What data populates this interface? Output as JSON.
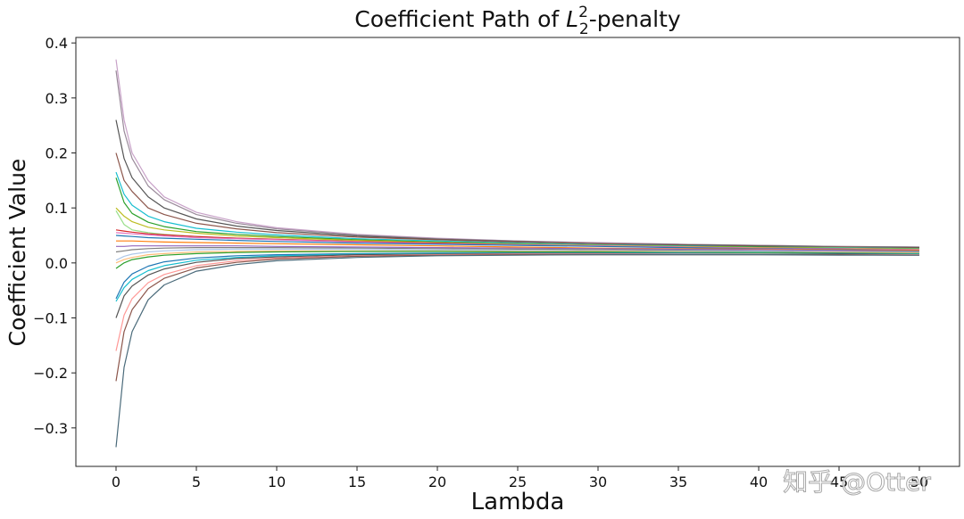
{
  "chart_data": {
    "type": "line",
    "title_prefix": "Coefficient Path of ",
    "title_math_base": "L",
    "title_math_sup": "2",
    "title_math_sub": "2",
    "title_suffix": "-penalty",
    "xlabel": "Lambda",
    "ylabel": "Coefficient Value",
    "xlim": [
      -2.5,
      52.5
    ],
    "ylim": [
      -0.37,
      0.41
    ],
    "xticks": [
      0,
      5,
      10,
      15,
      20,
      25,
      30,
      35,
      40,
      45,
      50
    ],
    "yticks": [
      -0.3,
      -0.2,
      -0.1,
      0.0,
      0.1,
      0.2,
      0.3,
      0.4
    ],
    "ytick_labels": [
      "−0.3",
      "−0.2",
      "−0.1",
      "0.0",
      "0.1",
      "0.2",
      "0.3",
      "0.4"
    ],
    "x": [
      0,
      0.5,
      1,
      2,
      3,
      5,
      7.5,
      10,
      15,
      20,
      25,
      30,
      35,
      40,
      45,
      50
    ],
    "grid": false,
    "series": [
      {
        "values": [
          0.37,
          0.26,
          0.2,
          0.15,
          0.12,
          0.092,
          0.075,
          0.064,
          0.052,
          0.045,
          0.04,
          0.037,
          0.034,
          0.032,
          0.03,
          0.029
        ],
        "color": "#c8a2c8"
      },
      {
        "values": [
          0.35,
          0.24,
          0.19,
          0.14,
          0.115,
          0.088,
          0.072,
          0.062,
          0.051,
          0.044,
          0.04,
          0.036,
          0.034,
          0.032,
          0.03,
          0.029
        ],
        "color": "#9a8a9a"
      },
      {
        "values": [
          0.26,
          0.19,
          0.155,
          0.12,
          0.1,
          0.08,
          0.067,
          0.059,
          0.049,
          0.043,
          0.039,
          0.035,
          0.033,
          0.031,
          0.029,
          0.028
        ],
        "color": "#555555"
      },
      {
        "values": [
          0.2,
          0.15,
          0.13,
          0.1,
          0.088,
          0.072,
          0.062,
          0.055,
          0.047,
          0.042,
          0.038,
          0.035,
          0.032,
          0.03,
          0.029,
          0.027
        ],
        "color": "#8c564b"
      },
      {
        "values": [
          0.165,
          0.125,
          0.105,
          0.085,
          0.075,
          0.063,
          0.056,
          0.051,
          0.044,
          0.04,
          0.036,
          0.033,
          0.031,
          0.029,
          0.028,
          0.026
        ],
        "color": "#17becf"
      },
      {
        "values": [
          0.155,
          0.11,
          0.09,
          0.074,
          0.066,
          0.057,
          0.052,
          0.048,
          0.042,
          0.038,
          0.035,
          0.032,
          0.03,
          0.029,
          0.027,
          0.026
        ],
        "color": "#2ca02c"
      },
      {
        "values": [
          0.1,
          0.085,
          0.075,
          0.065,
          0.06,
          0.054,
          0.049,
          0.046,
          0.041,
          0.037,
          0.034,
          0.032,
          0.03,
          0.028,
          0.027,
          0.025
        ],
        "color": "#bcbd22"
      },
      {
        "values": [
          0.095,
          0.07,
          0.06,
          0.055,
          0.052,
          0.048,
          0.045,
          0.043,
          0.039,
          0.036,
          0.033,
          0.031,
          0.029,
          0.027,
          0.026,
          0.025
        ],
        "color": "#98df8a"
      },
      {
        "values": [
          0.06,
          0.058,
          0.056,
          0.053,
          0.051,
          0.048,
          0.045,
          0.043,
          0.039,
          0.036,
          0.033,
          0.031,
          0.029,
          0.027,
          0.026,
          0.024
        ],
        "color": "#d62728"
      },
      {
        "values": [
          0.055,
          0.054,
          0.053,
          0.051,
          0.049,
          0.046,
          0.044,
          0.042,
          0.038,
          0.035,
          0.033,
          0.031,
          0.029,
          0.027,
          0.026,
          0.024
        ],
        "color": "#e377c2"
      },
      {
        "values": [
          0.05,
          0.049,
          0.048,
          0.046,
          0.045,
          0.043,
          0.041,
          0.039,
          0.036,
          0.034,
          0.032,
          0.03,
          0.028,
          0.026,
          0.025,
          0.023
        ],
        "color": "#1f77b4"
      },
      {
        "values": [
          0.04,
          0.04,
          0.04,
          0.039,
          0.038,
          0.037,
          0.036,
          0.035,
          0.033,
          0.031,
          0.029,
          0.027,
          0.026,
          0.025,
          0.024,
          0.023
        ],
        "color": "#ff7f0e"
      },
      {
        "values": [
          0.03,
          0.03,
          0.031,
          0.031,
          0.031,
          0.031,
          0.031,
          0.03,
          0.029,
          0.028,
          0.027,
          0.026,
          0.025,
          0.024,
          0.023,
          0.022
        ],
        "color": "#9467bd"
      },
      {
        "values": [
          0.02,
          0.022,
          0.024,
          0.026,
          0.027,
          0.028,
          0.028,
          0.028,
          0.027,
          0.026,
          0.025,
          0.024,
          0.023,
          0.022,
          0.021,
          0.021
        ],
        "color": "#7f7f7f"
      },
      {
        "values": [
          0.005,
          0.012,
          0.016,
          0.02,
          0.022,
          0.024,
          0.025,
          0.025,
          0.025,
          0.024,
          0.023,
          0.022,
          0.021,
          0.021,
          0.02,
          0.019
        ],
        "color": "#aec7e8"
      },
      {
        "values": [
          0.0,
          0.006,
          0.01,
          0.015,
          0.017,
          0.02,
          0.021,
          0.022,
          0.022,
          0.022,
          0.021,
          0.021,
          0.02,
          0.019,
          0.019,
          0.018
        ],
        "color": "#ffbb78"
      },
      {
        "values": [
          -0.01,
          0.0,
          0.006,
          0.011,
          0.014,
          0.017,
          0.019,
          0.02,
          0.021,
          0.021,
          0.02,
          0.02,
          0.019,
          0.019,
          0.018,
          0.017
        ],
        "color": "#2ca02c"
      },
      {
        "values": [
          -0.065,
          -0.035,
          -0.02,
          -0.006,
          0.002,
          0.009,
          0.013,
          0.015,
          0.017,
          0.018,
          0.018,
          0.018,
          0.018,
          0.017,
          0.017,
          0.016
        ],
        "color": "#1f77b4"
      },
      {
        "values": [
          -0.07,
          -0.045,
          -0.03,
          -0.014,
          -0.005,
          0.005,
          0.01,
          0.013,
          0.016,
          0.017,
          0.017,
          0.017,
          0.017,
          0.017,
          0.016,
          0.016
        ],
        "color": "#17becf"
      },
      {
        "values": [
          -0.1,
          -0.06,
          -0.042,
          -0.022,
          -0.011,
          0.001,
          0.008,
          0.011,
          0.015,
          0.016,
          0.017,
          0.017,
          0.016,
          0.016,
          0.016,
          0.015
        ],
        "color": "#555555"
      },
      {
        "values": [
          -0.16,
          -0.095,
          -0.065,
          -0.036,
          -0.021,
          -0.005,
          0.004,
          0.009,
          0.013,
          0.015,
          0.016,
          0.016,
          0.016,
          0.016,
          0.015,
          0.015
        ],
        "color": "#ff9896"
      },
      {
        "values": [
          -0.215,
          -0.125,
          -0.085,
          -0.047,
          -0.028,
          -0.009,
          0.001,
          0.007,
          0.012,
          0.014,
          0.015,
          0.015,
          0.015,
          0.015,
          0.015,
          0.014
        ],
        "color": "#8c564b"
      },
      {
        "values": [
          -0.335,
          -0.19,
          -0.125,
          -0.067,
          -0.04,
          -0.015,
          -0.003,
          0.004,
          0.01,
          0.013,
          0.014,
          0.015,
          0.015,
          0.015,
          0.014,
          0.014
        ],
        "color": "#4a6a7a"
      }
    ]
  },
  "watermark": "知乎 @Otter"
}
